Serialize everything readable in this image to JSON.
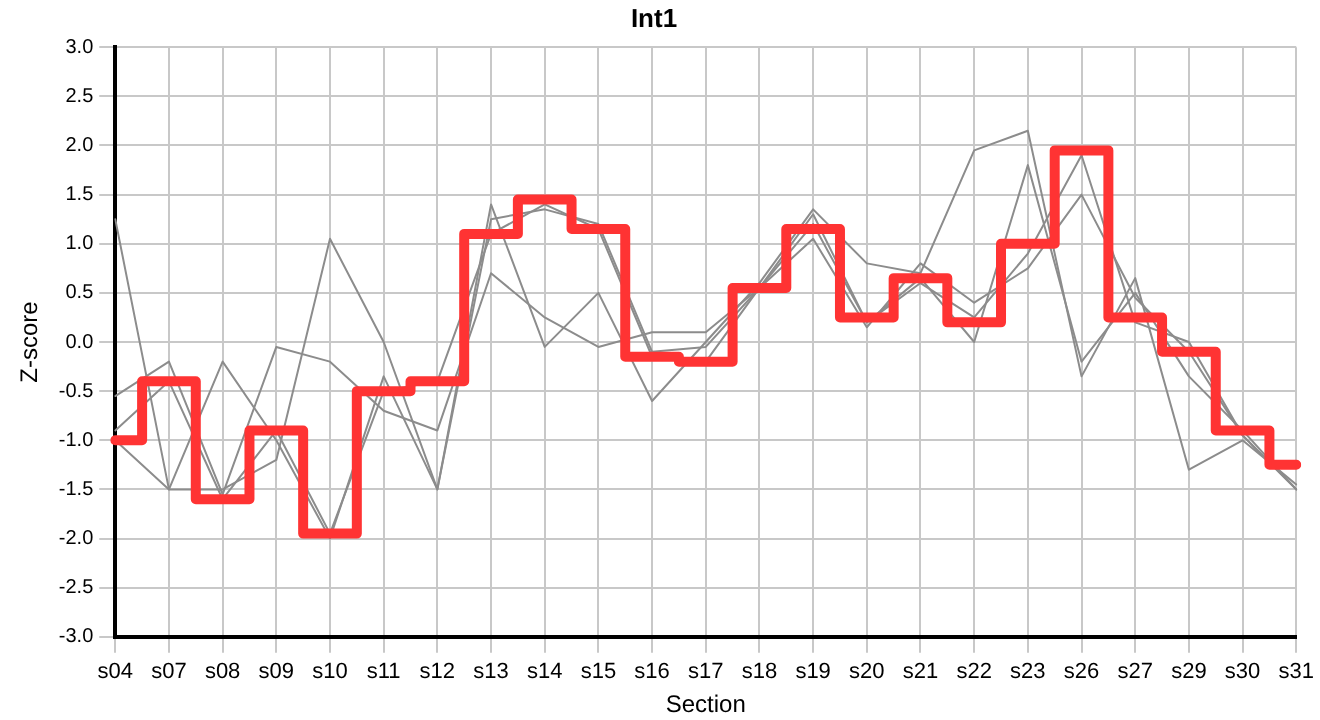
{
  "chart_data": {
    "type": "line",
    "title": "Int1",
    "xlabel": "Section",
    "ylabel": "Z-score",
    "categories": [
      "s04",
      "s07",
      "s08",
      "s09",
      "s10",
      "s11",
      "s12",
      "s13",
      "s14",
      "s15",
      "s16",
      "s17",
      "s18",
      "s19",
      "s20",
      "s21",
      "s22",
      "s23",
      "s26",
      "s27",
      "s29",
      "s30",
      "s31"
    ],
    "series": [
      {
        "color": "#8c8c8c",
        "values": [
          1.25,
          -1.5,
          -1.5,
          -1.2,
          1.05,
          0.0,
          -1.5,
          1.4,
          -0.05,
          0.5,
          -0.6,
          0.0,
          0.6,
          1.35,
          0.8,
          0.7,
          1.95,
          2.15,
          -0.35,
          0.65,
          -1.3,
          -1.0,
          -1.45
        ]
      },
      {
        "color": "#8c8c8c",
        "values": [
          -0.55,
          -0.2,
          -1.55,
          -0.05,
          -0.2,
          -0.7,
          -0.9,
          0.7,
          0.25,
          -0.05,
          0.1,
          0.1,
          0.55,
          1.05,
          0.15,
          0.8,
          0.4,
          0.75,
          1.5,
          0.45,
          -0.1,
          -0.95,
          -1.5
        ]
      },
      {
        "color": "#8c8c8c",
        "values": [
          -1.0,
          -1.5,
          -0.2,
          -1.0,
          -2.0,
          -0.35,
          -1.5,
          1.25,
          1.35,
          1.2,
          -0.1,
          -0.05,
          0.55,
          1.3,
          0.2,
          0.65,
          0.0,
          1.8,
          -0.2,
          0.5,
          -0.35,
          -0.9,
          -1.5
        ]
      },
      {
        "color": "#8c8c8c",
        "values": [
          -0.9,
          -0.4,
          -1.6,
          -0.9,
          -1.95,
          -0.5,
          -0.4,
          1.1,
          1.4,
          1.15,
          -0.15,
          -0.2,
          0.55,
          1.2,
          0.2,
          0.6,
          0.25,
          0.9,
          1.9,
          0.2,
          0.0,
          -0.95,
          -1.5
        ]
      },
      {
        "type": "step",
        "color": "#ff3333",
        "values": [
          -1.0,
          -0.4,
          -1.6,
          -0.9,
          -1.95,
          -0.5,
          -0.4,
          1.1,
          1.45,
          1.15,
          -0.15,
          -0.2,
          0.55,
          1.15,
          0.25,
          0.65,
          0.2,
          1.0,
          1.95,
          0.25,
          -0.1,
          -0.9,
          -1.25
        ]
      }
    ],
    "ylim": [
      -3,
      3
    ],
    "yticks": [
      {
        "value": -3,
        "label": "-3.0"
      },
      {
        "value": -2.5,
        "label": "-2.5"
      },
      {
        "value": -2,
        "label": "-2.0"
      },
      {
        "value": -1.5,
        "label": "-1.5"
      },
      {
        "value": -1,
        "label": "-1.0"
      },
      {
        "value": -0.5,
        "label": "-0.5"
      },
      {
        "value": 0,
        "label": "0.0"
      },
      {
        "value": 0.5,
        "label": "0.5"
      },
      {
        "value": 1,
        "label": "1.0"
      },
      {
        "value": 1.5,
        "label": "1.5"
      },
      {
        "value": 2,
        "label": "2.0"
      },
      {
        "value": 2.5,
        "label": "2.5"
      },
      {
        "value": 3,
        "label": "3.0"
      }
    ],
    "grid": true,
    "legend": false,
    "marker": "none"
  }
}
